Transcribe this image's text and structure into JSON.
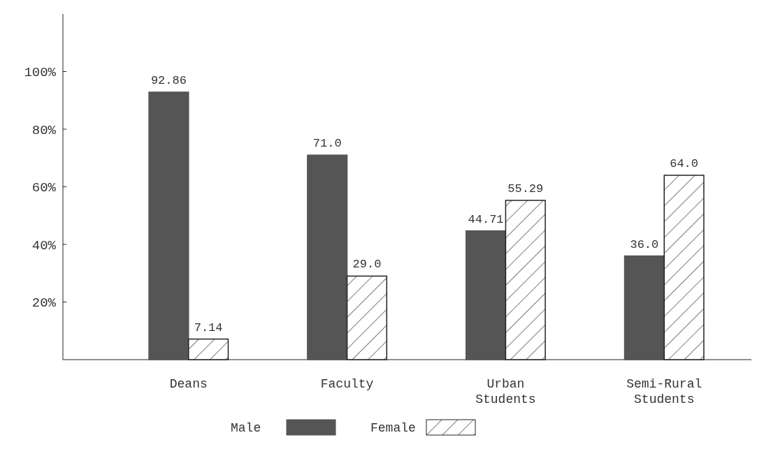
{
  "chart_data": {
    "type": "bar",
    "categories": [
      "Deans",
      "Faculty",
      "Urban Students",
      "Semi-Rural Students"
    ],
    "series": [
      {
        "name": "Male",
        "color": "#555555",
        "values": [
          92.86,
          71.0,
          44.71,
          36.0
        ],
        "value_labels": [
          "92.86",
          "71.0",
          "44.71",
          "36.0"
        ]
      },
      {
        "name": "Female",
        "color": "#222222",
        "values": [
          7.14,
          29.0,
          55.29,
          64.0
        ],
        "value_labels": [
          "7.14",
          "29.0",
          "55.29",
          "64.0"
        ]
      }
    ],
    "ylim": [
      0,
      120
    ],
    "yticks": [
      {
        "value": 20,
        "label": "20%"
      },
      {
        "value": 40,
        "label": "40%"
      },
      {
        "value": 60,
        "label": "60%"
      },
      {
        "value": 80,
        "label": "80%"
      },
      {
        "value": 100,
        "label": "100%"
      }
    ],
    "grid": false,
    "legend": "bottom"
  }
}
